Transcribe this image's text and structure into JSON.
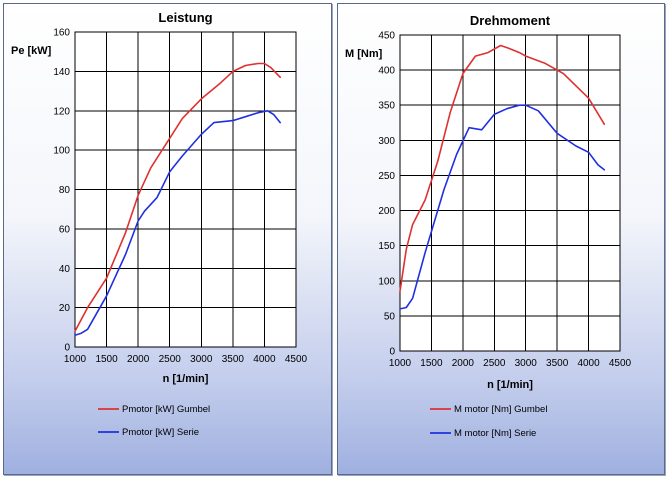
{
  "chart_data": [
    {
      "id": "leistung",
      "type": "line",
      "title": "Leistung",
      "ylabel": "Pe [kW]",
      "xlabel": "n [1/min]",
      "xlim": [
        1000,
        4500
      ],
      "ylim": [
        0,
        160
      ],
      "xticks": [
        1000,
        1500,
        2000,
        2500,
        3000,
        3500,
        4000,
        4500
      ],
      "yticks": [
        0,
        20,
        40,
        60,
        80,
        100,
        120,
        140,
        160
      ],
      "grid": true,
      "legend": "bottom",
      "series": [
        {
          "name": "Pmotor [kW] Gumbel",
          "color": "#e03030",
          "x": [
            1000,
            1200,
            1500,
            1800,
            2000,
            2200,
            2500,
            2700,
            3000,
            3300,
            3500,
            3700,
            3900,
            4000,
            4100,
            4250
          ],
          "y": [
            8,
            20,
            35,
            58,
            77,
            91,
            106,
            116,
            126,
            134,
            140,
            143,
            144,
            144,
            142,
            137
          ]
        },
        {
          "name": "Pmotor [kW] Serie",
          "color": "#2030e0",
          "x": [
            1000,
            1100,
            1200,
            1500,
            1800,
            2000,
            2100,
            2300,
            2500,
            2700,
            3000,
            3200,
            3500,
            3700,
            3900,
            4050,
            4150,
            4250
          ],
          "y": [
            6,
            7,
            9,
            26,
            47,
            64,
            69,
            76,
            89,
            97,
            108,
            114,
            115,
            117,
            119,
            120,
            118,
            114
          ]
        }
      ]
    },
    {
      "id": "drehmoment",
      "type": "line",
      "title": "Drehmoment",
      "ylabel": "M [Nm]",
      "xlabel": "n [1/min]",
      "xlim": [
        1000,
        4500
      ],
      "ylim": [
        0,
        450
      ],
      "xticks": [
        1000,
        1500,
        2000,
        2500,
        3000,
        3500,
        4000,
        4500
      ],
      "yticks": [
        0,
        50,
        100,
        150,
        200,
        250,
        300,
        350,
        400,
        450
      ],
      "grid": true,
      "legend": "bottom",
      "series": [
        {
          "name": "M motor [Nm] Gumbel",
          "color": "#e03030",
          "x": [
            1000,
            1100,
            1200,
            1400,
            1600,
            1800,
            2000,
            2200,
            2400,
            2600,
            2700,
            2900,
            3000,
            3300,
            3600,
            4000,
            4250
          ],
          "y": [
            85,
            145,
            180,
            215,
            270,
            340,
            395,
            420,
            425,
            435,
            432,
            425,
            420,
            410,
            395,
            360,
            323
          ]
        },
        {
          "name": "M motor [Nm] Serie",
          "color": "#2030e0",
          "x": [
            1000,
            1100,
            1200,
            1400,
            1700,
            1900,
            2100,
            2300,
            2500,
            2700,
            2900,
            3000,
            3200,
            3500,
            3800,
            4000,
            4150,
            4250
          ],
          "y": [
            60,
            62,
            75,
            140,
            230,
            280,
            318,
            315,
            337,
            345,
            350,
            350,
            342,
            310,
            292,
            283,
            265,
            258
          ]
        }
      ]
    }
  ]
}
